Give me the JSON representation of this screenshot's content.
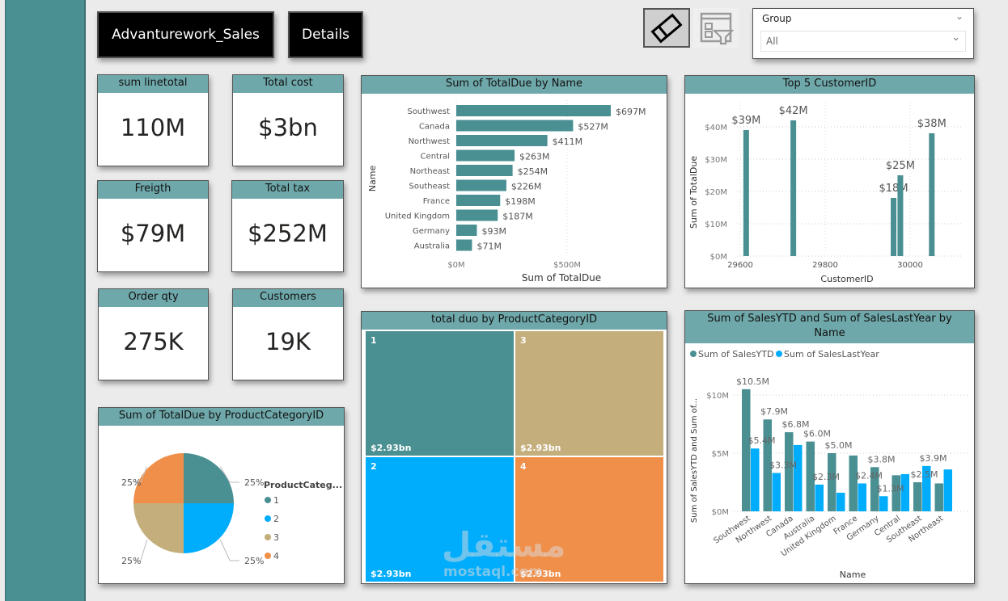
{
  "header": {
    "title_button": "Advanturework_Sales",
    "details_button": "Details",
    "clear_filters_icon": "eraser-icon",
    "filter_pane_icon": "filter-pane-icon"
  },
  "slicer": {
    "label": "Group",
    "selected": "All"
  },
  "kpi_cards": [
    {
      "title": "sum linetotal",
      "value": "110M"
    },
    {
      "title": "Total cost",
      "value": "$3bn"
    },
    {
      "title": "Freigth",
      "value": "$79M"
    },
    {
      "title": "Total tax",
      "value": "$252M"
    },
    {
      "title": "Order qty",
      "value": "275K"
    },
    {
      "title": "Customers",
      "value": "19K"
    }
  ],
  "colors": {
    "teal": "#4a8f92",
    "blue": "#00acfc",
    "tan": "#c4ae7c",
    "orange": "#f08f4a",
    "header": "#6fa8aa"
  },
  "chart_data": [
    {
      "id": "totaldue_by_name",
      "type": "bar",
      "orientation": "horizontal",
      "title": "Sum of TotalDue by Name",
      "xlabel": "Sum of TotalDue",
      "ylabel": "Name",
      "categories": [
        "Southwest",
        "Canada",
        "Northwest",
        "Central",
        "Northeast",
        "Southeast",
        "France",
        "United Kingdom",
        "Germany",
        "Australia"
      ],
      "values": [
        697,
        527,
        411,
        263,
        254,
        226,
        198,
        187,
        93,
        71
      ],
      "value_unit": "$M",
      "data_labels": [
        "$697M",
        "$527M",
        "$411M",
        "$263M",
        "$254M",
        "$226M",
        "$198M",
        "$187M",
        "$93M",
        "$71M"
      ],
      "xticks": [
        0,
        500
      ],
      "xtick_labels": [
        "$0M",
        "$500M"
      ],
      "xlim": [
        0,
        750
      ],
      "grid": true
    },
    {
      "id": "top5_customer",
      "type": "bar",
      "title": "Top 5 CustomerID",
      "xlabel": "CustomerID",
      "ylabel": "Sum of TotalDue",
      "x": [
        29614,
        29725,
        29961,
        29977,
        30051
      ],
      "values": [
        39,
        42,
        18,
        25,
        38
      ],
      "value_unit": "$M",
      "data_labels": [
        "$39M",
        "$42M",
        "$18M",
        "$25M",
        "$38M"
      ],
      "xticks": [
        29600,
        29800,
        30000
      ],
      "xtick_labels": [
        "29600",
        "29800",
        "30000"
      ],
      "xlim": [
        29590,
        30110
      ],
      "yticks": [
        0,
        10,
        20,
        30,
        40
      ],
      "ytick_labels": [
        "$0M",
        "$10M",
        "$20M",
        "$30M",
        "$40M"
      ],
      "ylim": [
        0,
        45
      ],
      "grid": true
    },
    {
      "id": "pie_category",
      "type": "pie",
      "title": "Sum of TotalDue by ProductCategoryID",
      "legend_title": "ProductCateg...",
      "legend_position": "right",
      "categories": [
        "1",
        "2",
        "3",
        "4"
      ],
      "values": [
        25,
        25,
        25,
        25
      ],
      "data_labels": [
        "25%",
        "25%",
        "25%",
        "25%"
      ]
    },
    {
      "id": "treemap_category",
      "type": "heatmap",
      "subtype": "treemap",
      "title": "total duo by ProductCategoryID",
      "categories": [
        "1",
        "3",
        "2",
        "4"
      ],
      "values": [
        2.93,
        2.93,
        2.93,
        2.93
      ],
      "value_unit": "$bn",
      "data_labels": [
        "$2.93bn",
        "$2.93bn",
        "$2.93bn",
        "$2.93bn"
      ]
    },
    {
      "id": "sales_ytd_lastyear",
      "type": "bar",
      "title": "Sum of SalesYTD and Sum of SalesLastYear by Name",
      "xlabel": "Name",
      "ylabel": "Sum of SalesYTD and Sum of...",
      "legend_position": "top-left",
      "categories": [
        "Southwest",
        "Northwest",
        "Canada",
        "Australia",
        "United Kingdom",
        "France",
        "Germany",
        "Central",
        "Southeast",
        "Northeast"
      ],
      "series": [
        {
          "name": "Sum of SalesYTD",
          "values": [
            10.5,
            7.9,
            6.8,
            6.0,
            5.0,
            4.8,
            3.8,
            3.1,
            2.5,
            2.4
          ],
          "data_labels": [
            "$10.5M",
            "$7.9M",
            "$6.8M",
            "$6.0M",
            "$5.0M",
            "",
            "$3.8M",
            "",
            "$2.5M",
            ""
          ]
        },
        {
          "name": "Sum of SalesLastYear",
          "values": [
            5.4,
            3.3,
            5.7,
            2.3,
            1.6,
            2.4,
            1.3,
            3.2,
            3.9,
            3.6
          ],
          "data_labels": [
            "$5.4M",
            "$3.3M",
            "",
            "$2.3M",
            "",
            "$2.4M",
            "$1.3M",
            "",
            "$3.9M",
            ""
          ]
        }
      ],
      "value_unit": "$M",
      "yticks": [
        0,
        5,
        10
      ],
      "ytick_labels": [
        "$0M",
        "$5M",
        "$10M"
      ],
      "ylim": [
        0,
        11.5
      ],
      "grid": true
    }
  ],
  "watermark": {
    "arabic": "مستقل",
    "latin": "mostaql.com"
  }
}
